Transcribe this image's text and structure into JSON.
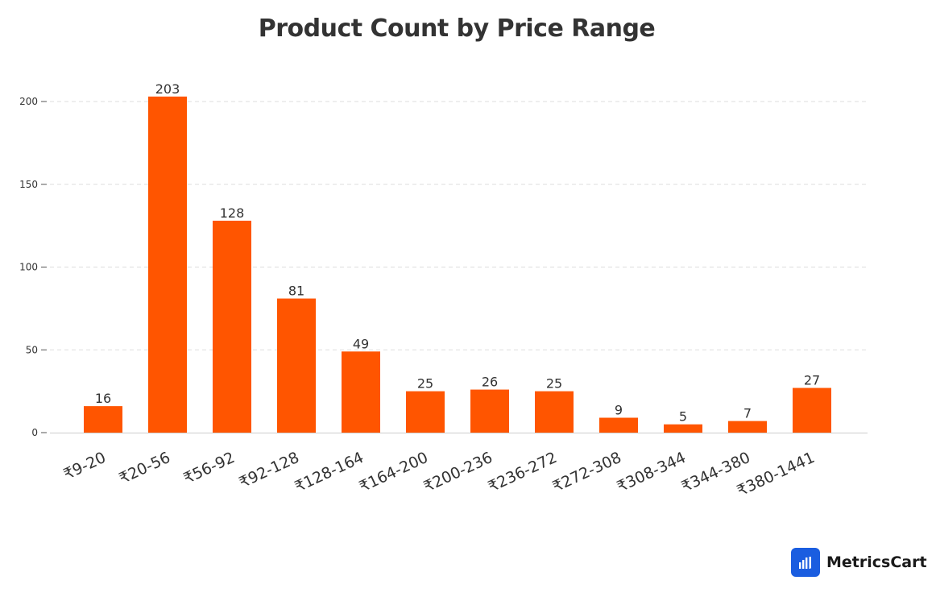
{
  "chart_data": {
    "type": "bar",
    "title": "Product Count by Price Range",
    "xlabel": "",
    "ylabel": "",
    "categories": [
      "₹9-20",
      "₹20-56",
      "₹56-92",
      "₹92-128",
      "₹128-164",
      "₹164-200",
      "₹200-236",
      "₹236-272",
      "₹272-308",
      "₹308-344",
      "₹344-380",
      "₹380-1441"
    ],
    "values": [
      16,
      203,
      128,
      81,
      49,
      25,
      26,
      25,
      9,
      5,
      7,
      27
    ],
    "yticks": [
      0,
      50,
      100,
      150,
      200
    ],
    "ylim": [
      0,
      213
    ],
    "grid": true,
    "bar_color": "#ff5500"
  },
  "brand": {
    "name": "MetricsCart",
    "logo_icon": "bar-chart-icon",
    "logo_color": "#1a5de0"
  }
}
